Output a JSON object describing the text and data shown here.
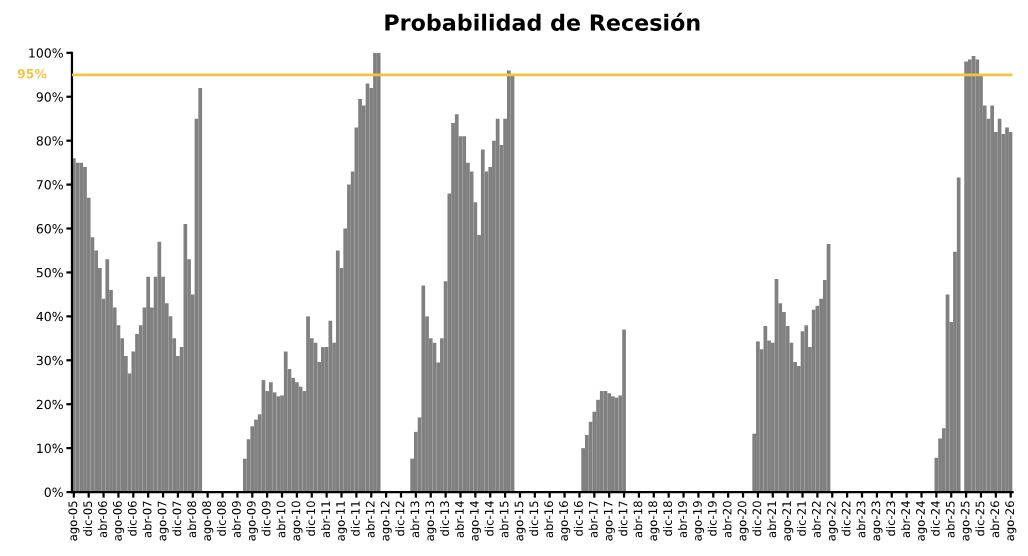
{
  "chart_data": {
    "type": "bar",
    "title": "Probabilidad de Recesión",
    "categories": [
      "ago-05",
      null,
      null,
      null,
      "dic-05",
      null,
      null,
      null,
      "abr-06",
      null,
      null,
      null,
      "ago-06",
      null,
      null,
      null,
      "dic-06",
      null,
      null,
      null,
      "abr-07",
      null,
      null,
      null,
      "ago-07",
      null,
      null,
      null,
      "dic-07",
      null,
      null,
      null,
      "abr-08",
      null,
      null,
      null,
      "ago-08",
      null,
      null,
      null,
      "dic-08",
      null,
      null,
      null,
      "abr-09",
      null,
      null,
      null,
      "ago-09",
      null,
      null,
      null,
      "dic-09",
      null,
      null,
      null,
      "abr-10",
      null,
      null,
      null,
      "ago-10",
      null,
      null,
      null,
      "dic-10",
      null,
      null,
      null,
      "abr-11",
      null,
      null,
      null,
      "ago-11",
      null,
      null,
      null,
      "dic-11",
      null,
      null,
      null,
      "abr-12",
      null,
      null,
      null,
      "ago-12",
      null,
      null,
      null,
      "dic-12",
      null,
      null,
      null,
      "abr-13",
      null,
      null,
      null,
      "ago-13",
      null,
      null,
      null,
      "dic-13",
      null,
      null,
      null,
      "abr-14",
      null,
      null,
      null,
      "ago-14",
      null,
      null,
      null,
      "dic-14",
      null,
      null,
      null,
      "abr-15",
      null,
      null,
      null,
      "ago-15",
      null,
      null,
      null,
      "dic-15",
      null,
      null,
      null,
      "abr-16",
      null,
      null,
      null,
      "ago-16",
      null,
      null,
      null,
      "dic-16",
      null,
      null,
      null,
      "abr-17",
      null,
      null,
      null,
      "ago-17",
      null,
      null,
      null,
      "dic-17",
      null,
      null,
      null,
      "abr-18",
      null,
      null,
      null,
      "ago-18",
      null,
      null,
      null,
      "dic-18",
      null,
      null,
      null,
      "abr-19",
      null,
      null,
      null,
      "ago-19",
      null,
      null,
      null,
      "dic-19",
      null,
      null,
      null,
      "abr-20",
      null,
      null,
      null,
      "ago-20",
      null,
      null,
      null,
      "dic-20",
      null,
      null,
      null,
      "abr-21",
      null,
      null,
      null,
      "ago-21",
      null,
      null,
      null,
      "dic-21",
      null,
      null,
      null,
      "abr-22",
      null,
      null,
      null,
      "ago-22",
      null,
      null,
      null,
      "dic-22",
      null,
      null,
      null,
      "abr-23",
      null,
      null,
      null,
      "ago-23",
      null,
      null,
      null,
      "dic-23",
      null,
      null,
      null,
      "abr-24",
      null,
      null,
      null,
      "ago-24",
      null,
      null,
      null,
      "dic-24",
      null,
      null,
      null,
      "abr-25",
      null,
      null,
      null,
      "ago-25",
      null,
      null,
      null,
      "dic-25",
      null,
      null,
      null,
      "abr-26",
      null,
      null,
      null,
      "ago-26"
    ],
    "values": [
      76,
      75,
      75,
      74,
      67,
      58,
      55,
      51,
      44,
      53,
      46,
      42,
      38,
      35,
      31,
      27,
      32,
      36,
      38,
      42,
      49,
      42,
      49,
      57,
      49,
      43,
      40,
      35,
      31,
      33,
      61,
      53,
      45,
      85,
      92,
      0,
      0,
      0,
      0,
      0,
      0,
      0,
      0,
      0,
      0,
      0,
      7.6,
      12,
      15,
      16.5,
      17.7,
      25.5,
      23,
      25,
      22.7,
      21.8,
      22,
      32,
      28,
      26,
      25,
      24,
      23,
      40,
      35,
      34,
      29.6,
      33,
      33,
      39,
      34,
      55,
      51,
      60,
      70,
      73,
      83,
      89.5,
      88,
      93,
      92,
      100,
      100,
      0,
      0,
      0,
      0,
      0,
      0,
      0,
      0,
      7.6,
      13.7,
      17,
      47,
      40,
      35,
      34,
      29.5,
      35,
      48,
      68,
      84,
      86,
      81,
      81,
      75,
      73,
      66,
      58.5,
      78,
      73,
      74,
      80,
      85,
      79,
      85,
      96,
      95,
      0,
      0,
      0,
      0,
      0,
      0,
      0,
      0,
      0,
      0,
      0,
      0,
      0,
      0,
      0,
      0,
      0,
      0,
      10,
      13,
      16,
      18.3,
      21,
      23,
      23,
      22.5,
      21.8,
      21.5,
      22,
      37,
      0,
      0,
      0,
      0,
      0,
      0,
      0,
      0,
      0,
      0,
      0,
      0,
      0,
      0,
      0,
      0,
      0,
      0,
      0,
      0,
      0,
      0,
      0,
      0,
      0,
      0,
      0,
      0,
      0,
      0,
      0,
      0,
      0,
      0,
      13.3,
      34.3,
      32.5,
      37.8,
      34.5,
      34,
      48.5,
      43,
      41,
      37.8,
      34,
      29.6,
      28.7,
      36.6,
      38,
      33,
      41.5,
      42.4,
      44,
      48.3,
      56.5,
      0,
      0,
      0,
      0,
      0,
      0,
      0,
      0,
      0,
      0,
      0,
      0,
      0,
      0,
      0,
      0,
      0,
      0,
      0,
      0,
      0,
      0,
      0,
      0,
      0,
      0,
      0,
      0,
      7.8,
      12.2,
      14.5,
      45,
      38.7,
      54.7,
      71.6,
      0,
      98,
      98.5,
      99.3,
      98.5,
      95,
      88,
      85,
      88,
      82,
      85,
      81.5,
      83,
      82
    ],
    "color": "#808080",
    "ylim": [
      0,
      100
    ],
    "yticks": [
      {
        "value": 0,
        "label": "0%"
      },
      {
        "value": 10,
        "label": "10%"
      },
      {
        "value": 20,
        "label": "20%"
      },
      {
        "value": 30,
        "label": "30%"
      },
      {
        "value": 40,
        "label": "40%"
      },
      {
        "value": 50,
        "label": "50%"
      },
      {
        "value": 60,
        "label": "60%"
      },
      {
        "value": 70,
        "label": "70%"
      },
      {
        "value": 80,
        "label": "80%"
      },
      {
        "value": 90,
        "label": "90%"
      },
      {
        "value": 100,
        "label": "100%"
      }
    ],
    "ref_lines": [
      {
        "axis": "y",
        "value": 95,
        "label": "95%",
        "color": "#f5c342"
      }
    ],
    "grid": false,
    "legend": false
  }
}
